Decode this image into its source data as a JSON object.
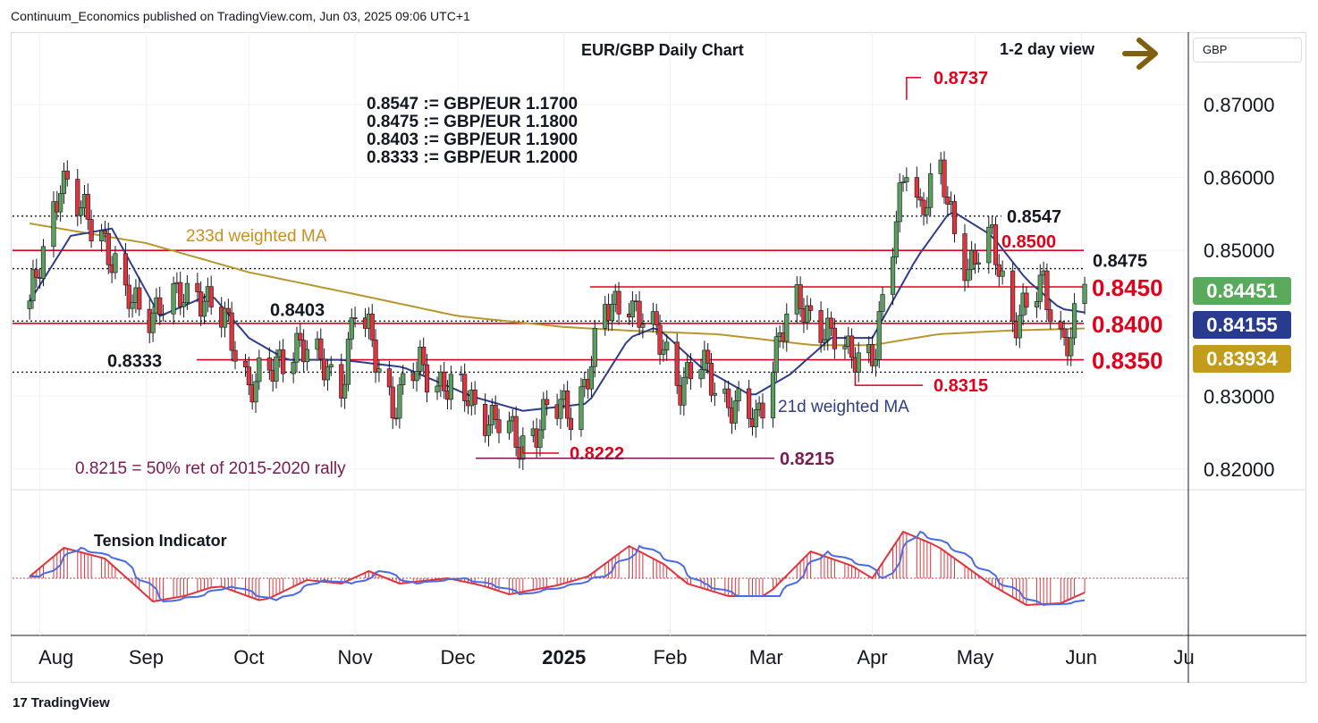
{
  "attribution": "Continuum_Economics published on TradingView.com, Jun 03, 2025 09:06 UTC+1",
  "footer": {
    "logo_text": "TradingView",
    "logo_icon": "tradingview-logo-icon"
  },
  "colors": {
    "candle_up": "#5c9e5c",
    "candle_down": "#e0343d",
    "ma21": "#2f3d8c",
    "ma233": "#b8962e",
    "level_red": "#e0001b",
    "tension_line": "#4a6be6",
    "tension_hist": "#e0343d",
    "badge_green": "#5aaa5e",
    "badge_navy": "#283b8e",
    "badge_gold": "#c29c1a",
    "arrow": "#806010"
  },
  "chart_data": {
    "type": "candlestick",
    "title": "EUR/GBP Daily Chart",
    "view_label": "1-2 day view",
    "view_icon": "arrow-right-icon",
    "currency": "GBP",
    "ylim": [
      0.8155,
      0.8775
    ],
    "y_ticks": [
      "0.87000",
      "0.86000",
      "0.85000",
      "0.83000",
      "0.82000"
    ],
    "y_tick_values": [
      0.87,
      0.86,
      0.85,
      0.83,
      0.82
    ],
    "x_ticks": [
      "Aug",
      "Sep",
      "Oct",
      "Nov",
      "Dec",
      "2025",
      "Feb",
      "Mar",
      "Apr",
      "May",
      "Jun",
      "Ju"
    ],
    "x_tick_bold": [
      false,
      false,
      false,
      false,
      false,
      true,
      false,
      false,
      false,
      false,
      false,
      false
    ],
    "conversion_notes": [
      "0.8547 := GBP/EUR 1.1700",
      "0.8475 := GBP/EUR 1.1800",
      "0.8403 := GBP/EUR 1.1900",
      "0.8333 := GBP/EUR 1.2000"
    ],
    "levels": [
      {
        "value": 0.8547,
        "label": "0.8547",
        "style": "dotted"
      },
      {
        "value": 0.85,
        "label": "0.8500",
        "style": "red"
      },
      {
        "value": 0.8475,
        "label": "0.8475",
        "style": "dotted"
      },
      {
        "value": 0.845,
        "label": "0.8450",
        "style": "red-large"
      },
      {
        "value": 0.8403,
        "label": "0.8403",
        "style": "dotted"
      },
      {
        "value": 0.84,
        "label": "0.8400",
        "style": "red-large"
      },
      {
        "value": 0.835,
        "label": "0.8350",
        "style": "red-large"
      },
      {
        "value": 0.8333,
        "label": "0.8333",
        "style": "dotted"
      }
    ],
    "annotations": [
      {
        "label": "0.8737",
        "value": 0.8737
      },
      {
        "label": "0.8315",
        "value": 0.8315
      },
      {
        "label": "0.8222",
        "value": 0.8222
      },
      {
        "label": "0.8215",
        "value": 0.8215
      },
      {
        "label": "0.8215 = 50% ret of 2015-2020 rally"
      },
      {
        "label": "233d weighted MA"
      },
      {
        "label": "21d weighted MA"
      }
    ],
    "price_badges": [
      {
        "label": "0.84451",
        "value": 0.8445,
        "series": "price"
      },
      {
        "label": "0.84155",
        "value": 0.8416,
        "series": "21d weighted MA"
      },
      {
        "label": "0.83934",
        "value": 0.8393,
        "series": "233d weighted MA"
      }
    ],
    "close_anchors": [
      [
        "2024-07-29",
        0.842
      ],
      [
        "2024-08-07",
        0.86
      ],
      [
        "2024-08-13",
        0.855
      ],
      [
        "2024-08-19",
        0.853
      ],
      [
        "2024-08-26",
        0.843
      ],
      [
        "2024-09-02",
        0.842
      ],
      [
        "2024-09-10",
        0.843
      ],
      [
        "2024-09-16",
        0.845
      ],
      [
        "2024-09-25",
        0.839
      ],
      [
        "2024-10-01",
        0.832
      ],
      [
        "2024-10-08",
        0.833
      ],
      [
        "2024-10-15",
        0.838
      ],
      [
        "2024-10-22",
        0.834
      ],
      [
        "2024-10-28",
        0.832
      ],
      [
        "2024-11-01",
        0.842
      ],
      [
        "2024-11-05",
        0.838
      ],
      [
        "2024-11-12",
        0.829
      ],
      [
        "2024-11-20",
        0.834
      ],
      [
        "2024-11-27",
        0.832
      ],
      [
        "2024-12-05",
        0.829
      ],
      [
        "2024-12-12",
        0.827
      ],
      [
        "2024-12-19",
        0.823
      ],
      [
        "2024-12-27",
        0.828
      ],
      [
        "2025-01-03",
        0.828
      ],
      [
        "2025-01-07",
        0.832
      ],
      [
        "2025-01-13",
        0.841
      ],
      [
        "2025-01-20",
        0.844
      ],
      [
        "2025-01-23",
        0.841
      ],
      [
        "2025-01-31",
        0.836
      ],
      [
        "2025-02-04",
        0.832
      ],
      [
        "2025-02-10",
        0.834
      ],
      [
        "2025-02-17",
        0.83
      ],
      [
        "2025-02-26",
        0.826
      ],
      [
        "2025-03-05",
        0.839
      ],
      [
        "2025-03-10",
        0.842
      ],
      [
        "2025-03-18",
        0.84
      ],
      [
        "2025-03-25",
        0.835
      ],
      [
        "2025-04-02",
        0.837
      ],
      [
        "2025-04-07",
        0.85
      ],
      [
        "2025-04-11",
        0.863
      ],
      [
        "2025-04-15",
        0.856
      ],
      [
        "2025-04-21",
        0.86
      ],
      [
        "2025-04-25",
        0.853
      ],
      [
        "2025-04-29",
        0.848
      ],
      [
        "2025-05-06",
        0.851
      ],
      [
        "2025-05-12",
        0.841
      ],
      [
        "2025-05-16",
        0.842
      ],
      [
        "2025-05-21",
        0.845
      ],
      [
        "2025-05-26",
        0.8385
      ],
      [
        "2025-05-29",
        0.838
      ],
      [
        "2025-06-02",
        0.8445
      ]
    ],
    "ma21_anchors": [
      [
        "2024-07-29",
        0.843
      ],
      [
        "2024-08-10",
        0.852
      ],
      [
        "2024-08-22",
        0.853
      ],
      [
        "2024-09-05",
        0.841
      ],
      [
        "2024-09-20",
        0.844
      ],
      [
        "2024-10-01",
        0.838
      ],
      [
        "2024-10-12",
        0.835
      ],
      [
        "2024-10-28",
        0.835
      ],
      [
        "2024-11-15",
        0.834
      ],
      [
        "2024-12-05",
        0.83
      ],
      [
        "2024-12-20",
        0.828
      ],
      [
        "2025-01-08",
        0.829
      ],
      [
        "2025-01-20",
        0.838
      ],
      [
        "2025-01-28",
        0.8395
      ],
      [
        "2025-02-10",
        0.834
      ],
      [
        "2025-02-25",
        0.83
      ],
      [
        "2025-03-08",
        0.833
      ],
      [
        "2025-03-20",
        0.838
      ],
      [
        "2025-04-01",
        0.838
      ],
      [
        "2025-04-14",
        0.849
      ],
      [
        "2025-04-24",
        0.8555
      ],
      [
        "2025-05-06",
        0.852
      ],
      [
        "2025-05-16",
        0.846
      ],
      [
        "2025-05-26",
        0.842
      ],
      [
        "2025-06-02",
        0.8415
      ]
    ],
    "ma233_anchors": [
      [
        "2024-07-29",
        0.8537
      ],
      [
        "2024-09-01",
        0.851
      ],
      [
        "2024-10-01",
        0.847
      ],
      [
        "2024-11-01",
        0.844
      ],
      [
        "2024-12-01",
        0.841
      ],
      [
        "2025-01-01",
        0.8395
      ],
      [
        "2025-01-20",
        0.839
      ],
      [
        "2025-02-15",
        0.8385
      ],
      [
        "2025-03-15",
        0.837
      ],
      [
        "2025-04-01",
        0.837
      ],
      [
        "2025-04-20",
        0.8385
      ],
      [
        "2025-05-10",
        0.839
      ],
      [
        "2025-06-02",
        0.8393
      ]
    ],
    "tension_indicator": {
      "label": "Tension Indicator",
      "anchors": [
        [
          "2024-07-29",
          0.05
        ],
        [
          "2024-08-08",
          0.85
        ],
        [
          "2024-08-20",
          0.55
        ],
        [
          "2024-09-03",
          -0.65
        ],
        [
          "2024-09-12",
          -0.5
        ],
        [
          "2024-09-22",
          -0.2
        ],
        [
          "2024-10-05",
          -0.65
        ],
        [
          "2024-10-18",
          -0.05
        ],
        [
          "2024-10-28",
          -0.15
        ],
        [
          "2024-11-05",
          0.2
        ],
        [
          "2024-11-14",
          -0.15
        ],
        [
          "2024-11-28",
          0.0
        ],
        [
          "2024-12-08",
          -0.2
        ],
        [
          "2024-12-16",
          -0.45
        ],
        [
          "2024-12-30",
          -0.2
        ],
        [
          "2025-01-08",
          0.05
        ],
        [
          "2025-01-20",
          0.9
        ],
        [
          "2025-01-30",
          0.4
        ],
        [
          "2025-02-06",
          -0.15
        ],
        [
          "2025-02-18",
          -0.5
        ],
        [
          "2025-03-01",
          -0.5
        ],
        [
          "2025-03-14",
          0.75
        ],
        [
          "2025-03-26",
          0.35
        ],
        [
          "2025-04-01",
          0.0
        ],
        [
          "2025-04-10",
          1.3
        ],
        [
          "2025-04-20",
          0.9
        ],
        [
          "2025-05-06",
          -0.2
        ],
        [
          "2025-05-16",
          -0.75
        ],
        [
          "2025-05-26",
          -0.7
        ],
        [
          "2025-06-02",
          -0.4
        ]
      ]
    }
  }
}
